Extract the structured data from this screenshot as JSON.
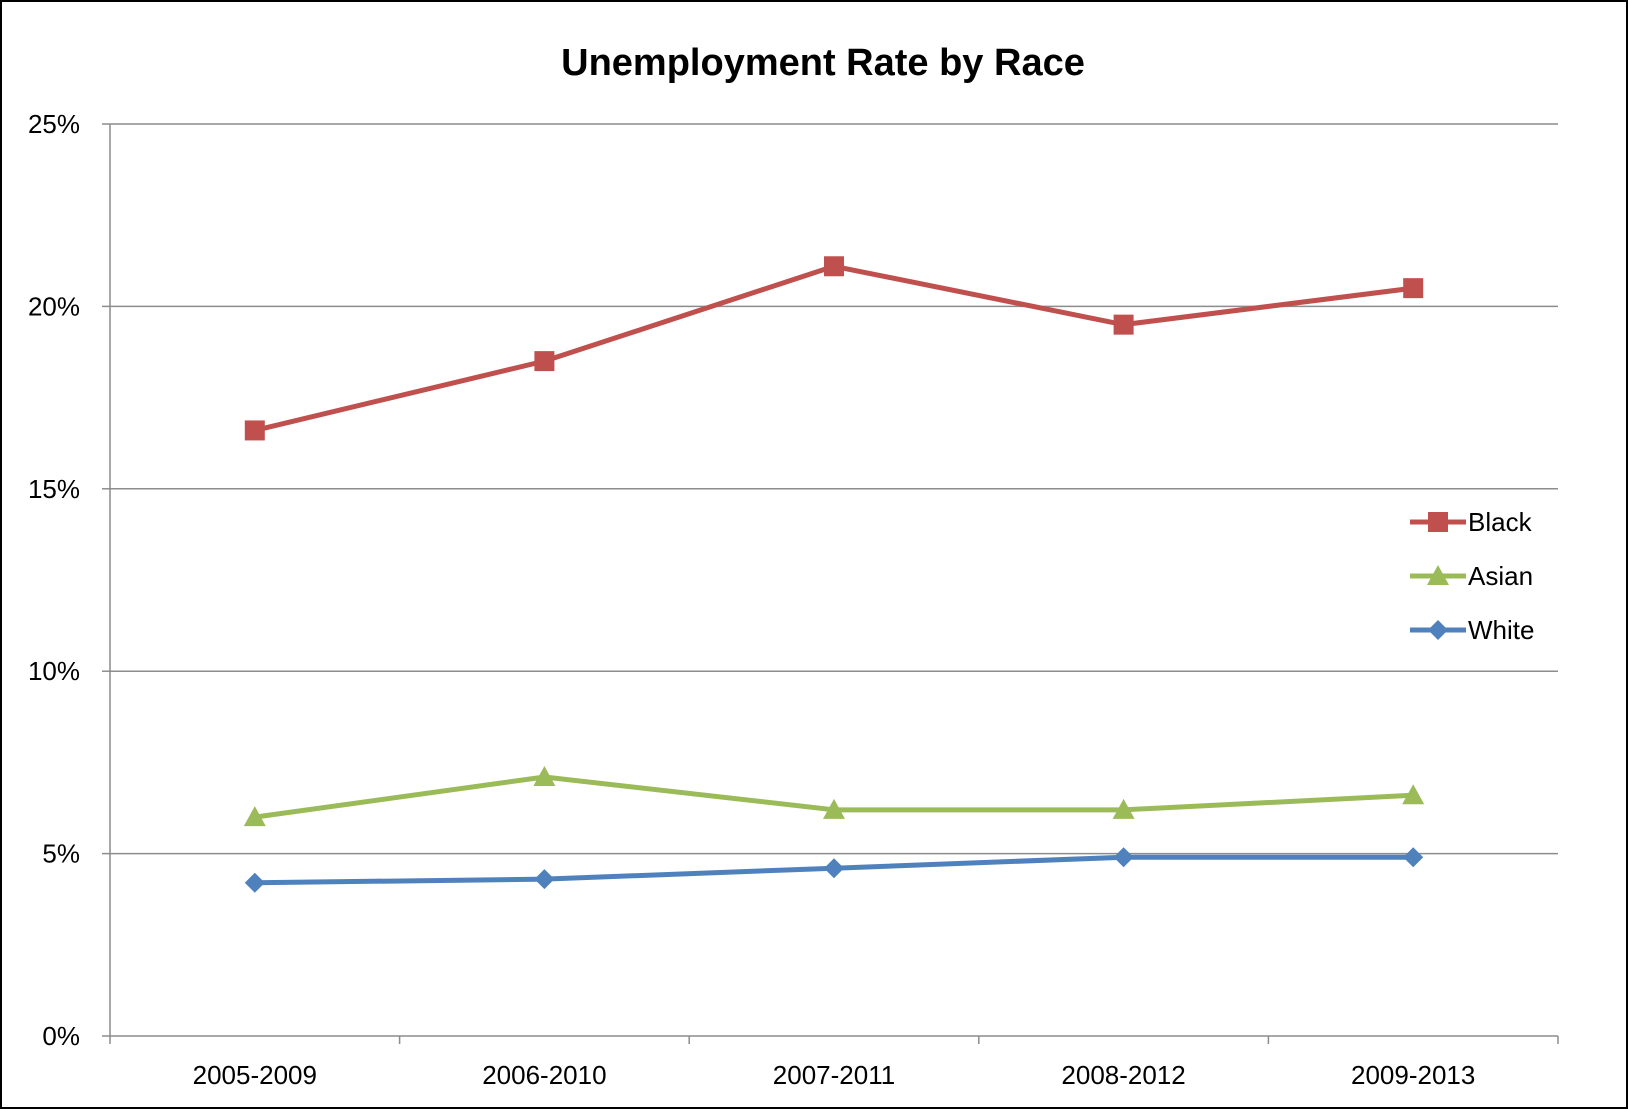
{
  "chart_data": {
    "type": "line",
    "title": "Unemployment Rate by Race",
    "xlabel": "",
    "ylabel": "",
    "categories": [
      "2005-2009",
      "2006-2010",
      "2007-2011",
      "2008-2012",
      "2009-2013"
    ],
    "series": [
      {
        "name": "Black",
        "values": [
          16.6,
          18.5,
          21.1,
          19.5,
          20.5
        ],
        "color": "#C0504D",
        "marker": "square"
      },
      {
        "name": "Asian",
        "values": [
          6.0,
          7.1,
          6.2,
          6.2,
          6.6
        ],
        "color": "#9BBB59",
        "marker": "triangle"
      },
      {
        "name": "White",
        "values": [
          4.2,
          4.3,
          4.6,
          4.9,
          4.9
        ],
        "color": "#4F81BD",
        "marker": "diamond"
      }
    ],
    "ylim": [
      0,
      25
    ],
    "yticks": [
      0,
      5,
      10,
      15,
      20,
      25
    ],
    "ytick_labels": [
      "0%",
      "5%",
      "10%",
      "15%",
      "20%",
      "25%"
    ],
    "grid": true,
    "legend_position": "right"
  }
}
